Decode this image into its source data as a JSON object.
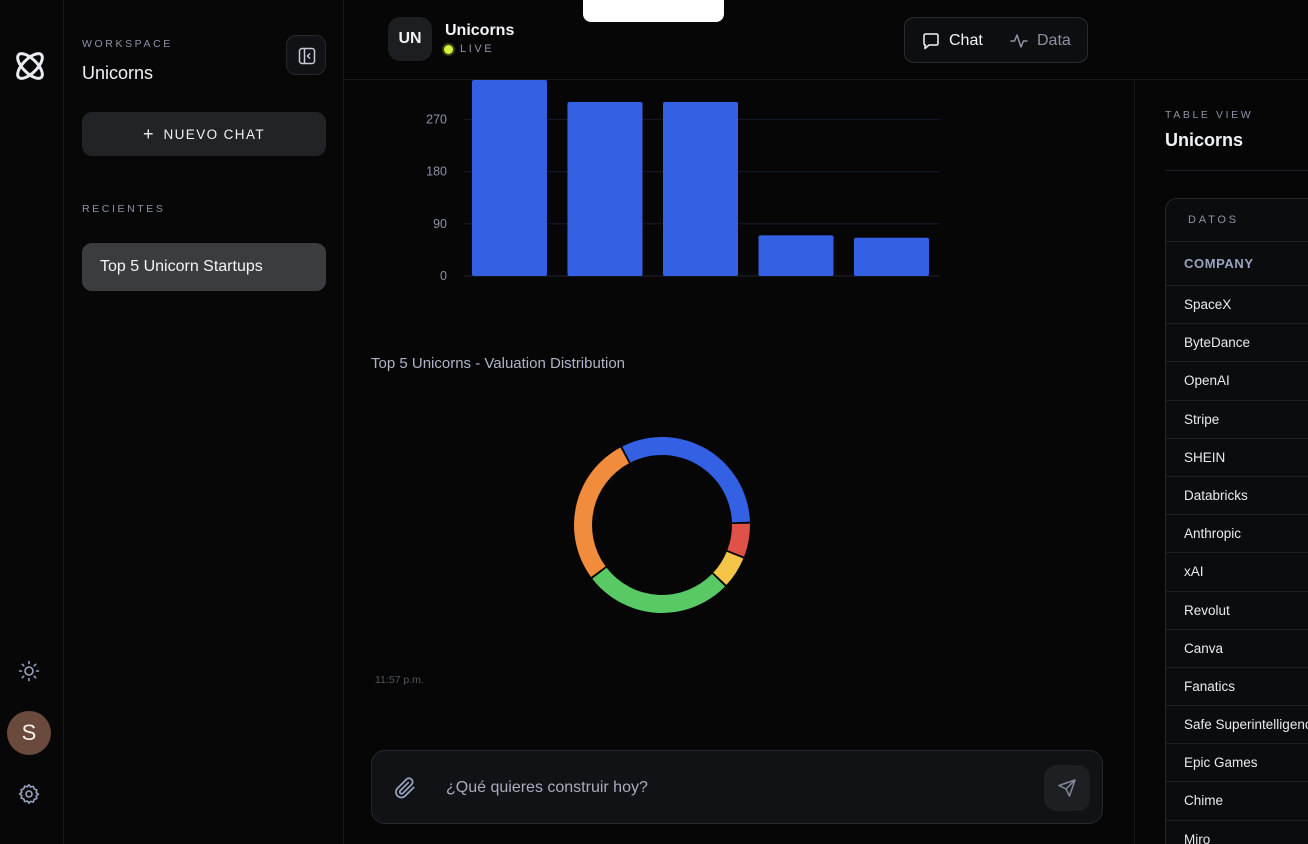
{
  "rail": {
    "logo_icon": "atom-logo-icon",
    "theme_icon": "sun-icon",
    "avatar_initial": "S",
    "settings_icon": "gear-icon"
  },
  "sidebar": {
    "workspace_kicker": "WORKSPACE",
    "workspace_name": "Unicorns",
    "new_chat_label": "NUEVO CHAT",
    "recent_kicker": "RECIENTES",
    "recent_items": [
      "Top 5 Unicorn Startups"
    ]
  },
  "header": {
    "badge": "UN",
    "title": "Unicorns",
    "status": "LIVE",
    "tabs": [
      {
        "label": "Chat",
        "icon": "chat-bubble-icon",
        "active": true
      },
      {
        "label": "Data",
        "icon": "activity-icon",
        "active": false
      }
    ]
  },
  "chat": {
    "pie_title": "Top 5 Unicorns - Valuation Distribution",
    "timestamp": "11:57 p.m.",
    "composer_placeholder": "¿Qué quieres construir hoy?"
  },
  "chart_data": [
    {
      "type": "bar",
      "categories": [
        "",
        "",
        "",
        "",
        ""
      ],
      "values": [
        350,
        300,
        300,
        70,
        66
      ],
      "title": "",
      "xlabel": "",
      "ylabel": "",
      "yticks": [
        0,
        90,
        180,
        270
      ],
      "ylim": [
        0,
        360
      ],
      "color": "#3461e4",
      "grid": true
    },
    {
      "type": "pie",
      "title": "Top 5 Unicorns - Valuation Distribution",
      "labels": [
        "",
        "",
        "",
        "",
        ""
      ],
      "values": [
        350,
        300,
        300,
        70,
        66
      ],
      "colors": [
        "#3461e4",
        "#e05248",
        "#f5c54a",
        "#59c966",
        "#f08c3c"
      ],
      "donut": true
    }
  ],
  "table_panel": {
    "kicker": "TABLE VIEW",
    "title": "Unicorns",
    "card_header": "DATOS",
    "column": "COMPANY",
    "rows": [
      "SpaceX",
      "ByteDance",
      "OpenAI",
      "Stripe",
      "SHEIN",
      "Databricks",
      "Anthropic",
      "xAI",
      "Revolut",
      "Canva",
      "Fanatics",
      "Safe Superintelligence",
      "Epic Games",
      "Chime",
      "Miro"
    ]
  }
}
